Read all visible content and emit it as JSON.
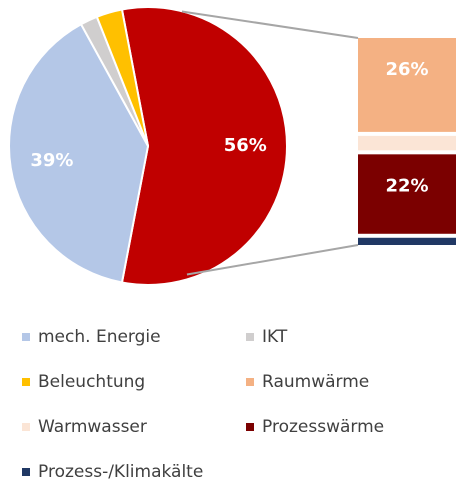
{
  "chart_data": {
    "type": "pie-of-bar",
    "pie": {
      "categories": [
        "mech. Energie",
        "IKT",
        "Beleuchtung",
        null
      ],
      "values": [
        39,
        2,
        3,
        56
      ],
      "value_labels": [
        "39%",
        null,
        null,
        "56%"
      ],
      "colors": [
        "#b4c7e7",
        "#d0cece",
        "#ffc000",
        "#c00000"
      ]
    },
    "bar": {
      "categories": [
        "Raumwärme",
        "Warmwasser",
        "Prozesswärme",
        "Prozess-/Klimakälte"
      ],
      "values": [
        26,
        4,
        22,
        2
      ],
      "value_labels": [
        "26%",
        null,
        "22%",
        null
      ],
      "colors": [
        "#f4b183",
        "#fbe5d6",
        "#7b0000",
        "#203864"
      ]
    }
  }
}
